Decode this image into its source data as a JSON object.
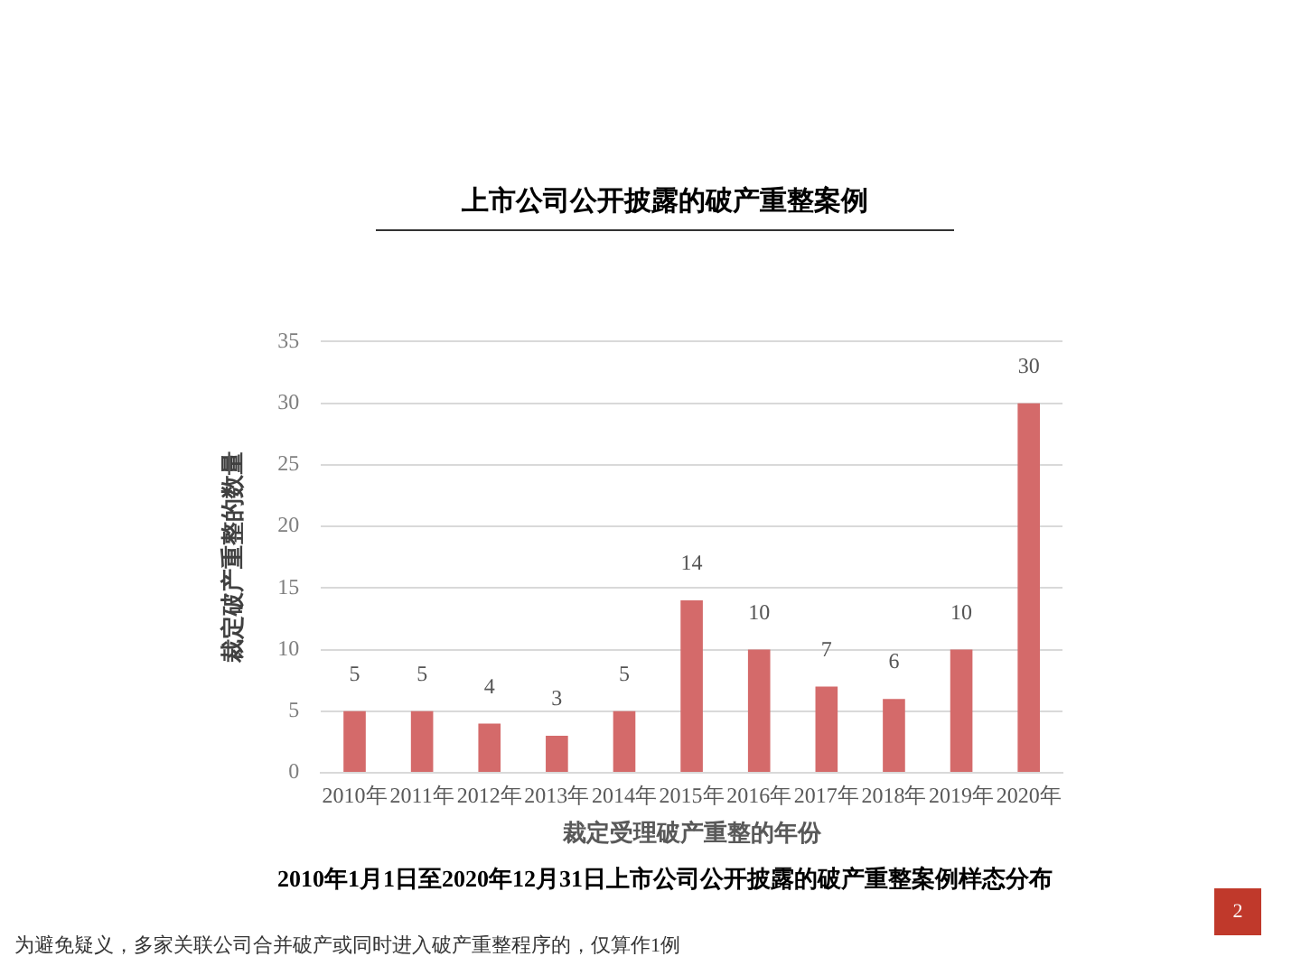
{
  "chart_data": {
    "type": "bar",
    "title": "上市公司公开披露的破产重整案例",
    "xlabel": "裁定受理破产重整的年份",
    "ylabel": "裁定破产重整的数量",
    "categories": [
      "2010年",
      "2011年",
      "2012年",
      "2013年",
      "2014年",
      "2015年",
      "2016年",
      "2017年",
      "2018年",
      "2019年",
      "2020年"
    ],
    "values": [
      5,
      5,
      4,
      3,
      5,
      14,
      10,
      7,
      6,
      10,
      30
    ],
    "color": "#d46a6a",
    "ylim": [
      0,
      35
    ],
    "yticks": [
      0,
      5,
      10,
      15,
      20,
      25,
      30,
      35
    ],
    "grid": "y",
    "legend": false,
    "data_labels": true,
    "annotations": [
      "2010年1月1日至2020年12月31日上市公司公开披露的破产重整案例样态分布",
      "为避免疑义，多家关联公司合并破产或同时进入破产重整程序的，仅算作1例",
      "2"
    ]
  }
}
